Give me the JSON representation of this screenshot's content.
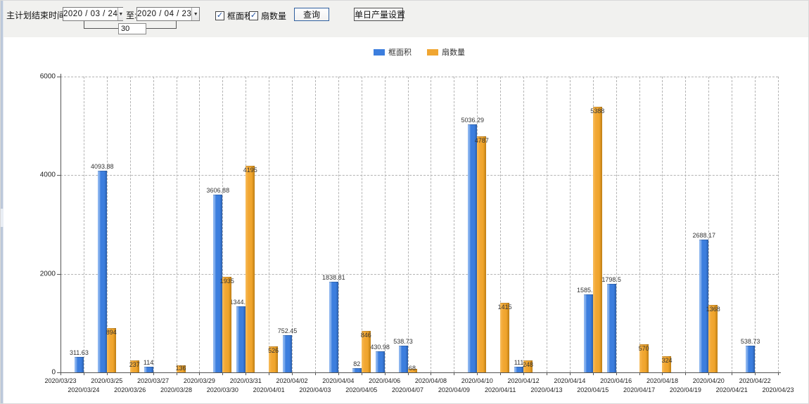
{
  "toolbar": {
    "label_end_time": "主计划结束时间:",
    "date_from": "2020 / 03 / 24",
    "label_to": "至:",
    "date_to": "2020 / 04 / 23",
    "interval_days": "30",
    "checkbox_frame_area": "框面积",
    "checkbox_fan_count": "扇数量",
    "check_glyph": "✓",
    "dropdown_glyph": "▼",
    "query_button": "查询",
    "daily_output_button": "单日产量设置"
  },
  "colors": {
    "frame_area": "#3c7ede",
    "fan_count": "#f0a632",
    "toolbar_bg": "#f1f1ef",
    "grid": "#b3b3b3",
    "axis": "#555555"
  },
  "chart_data": {
    "type": "bar",
    "title": "",
    "xlabel": "",
    "ylabel": "",
    "ylim": [
      0,
      6000
    ],
    "yticks": [
      0,
      2000,
      4000,
      6000
    ],
    "grid": true,
    "legend_position": "top",
    "categories": [
      "2020/03/23",
      "2020/03/24",
      "2020/03/25",
      "2020/03/26",
      "2020/03/27",
      "2020/03/28",
      "2020/03/29",
      "2020/03/30",
      "2020/03/31",
      "2020/04/01",
      "2020/04/02",
      "2020/04/03",
      "2020/04/04",
      "2020/04/05",
      "2020/04/06",
      "2020/04/07",
      "2020/04/08",
      "2020/04/09",
      "2020/04/10",
      "2020/04/11",
      "2020/04/12",
      "2020/04/13",
      "2020/04/14",
      "2020/04/15",
      "2020/04/16",
      "2020/04/17",
      "2020/04/18",
      "2020/04/19",
      "2020/04/20",
      "2020/04/21",
      "2020/04/22",
      "2020/04/23"
    ],
    "series": [
      {
        "name": "框面积",
        "color": "#3c7ede",
        "values": [
          null,
          311.63,
          4093.88,
          null,
          114,
          null,
          null,
          3606.88,
          1344.95,
          null,
          752.45,
          null,
          1838.81,
          82,
          430.98,
          538.73,
          null,
          null,
          5036.29,
          null,
          111,
          null,
          null,
          1585.96,
          1798.5,
          null,
          null,
          null,
          2688.17,
          null,
          538.73,
          null
        ]
      },
      {
        "name": "扇数量",
        "color": "#f0a632",
        "values": [
          null,
          null,
          894,
          237,
          null,
          136,
          null,
          1935,
          4195,
          526,
          null,
          null,
          null,
          846,
          null,
          68,
          null,
          null,
          4787,
          1415,
          248,
          null,
          null,
          5388,
          null,
          570,
          324,
          null,
          1368,
          null,
          null,
          null
        ]
      }
    ]
  }
}
